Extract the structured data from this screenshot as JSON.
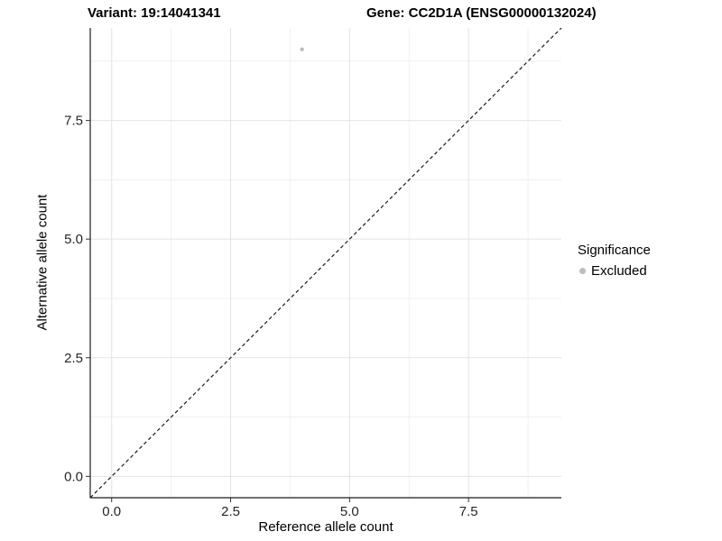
{
  "header": {
    "variant_title": "Variant: 19:14041341",
    "gene_title": "Gene: CC2D1A (ENSG00000132024)"
  },
  "chart_data": {
    "type": "scatter",
    "xlabel": "Reference allele count",
    "ylabel": "Alternative allele count",
    "xlim": [
      -0.45,
      9.45
    ],
    "ylim": [
      -0.45,
      9.45
    ],
    "x_ticks": {
      "values": [
        0,
        2.5,
        5,
        7.5
      ],
      "labels": [
        "0.0",
        "2.5",
        "5.0",
        "7.5"
      ]
    },
    "y_ticks": {
      "values": [
        0,
        2.5,
        5,
        7.5
      ],
      "labels": [
        "0.0",
        "2.5",
        "5.0",
        "7.5"
      ]
    },
    "minor_ticks": [
      1.25,
      3.75,
      6.25,
      8.75
    ],
    "grid": "major-and-minor",
    "series": [
      {
        "name": "Excluded",
        "color": "#bdbdbd",
        "point_radius": 2.2,
        "points": [
          {
            "x": 4,
            "y": 9
          }
        ]
      }
    ],
    "reference_line": {
      "kind": "identity",
      "from": [
        -0.45,
        -0.45
      ],
      "to": [
        9.45,
        9.45
      ],
      "style": "dashed",
      "color": "#1a1a1a"
    },
    "legend": {
      "title": "Significance",
      "position": "right",
      "entries": [
        {
          "label": "Excluded",
          "color": "#bdbdbd"
        }
      ]
    }
  },
  "colors": {
    "background": "#ffffff",
    "grid_major": "#e3e3e3",
    "grid_minor": "#f1f1f1",
    "axis_line": "#1a1a1a",
    "tick_mark": "#333333",
    "tick_label": "#262626",
    "title_text": "#000000"
  }
}
